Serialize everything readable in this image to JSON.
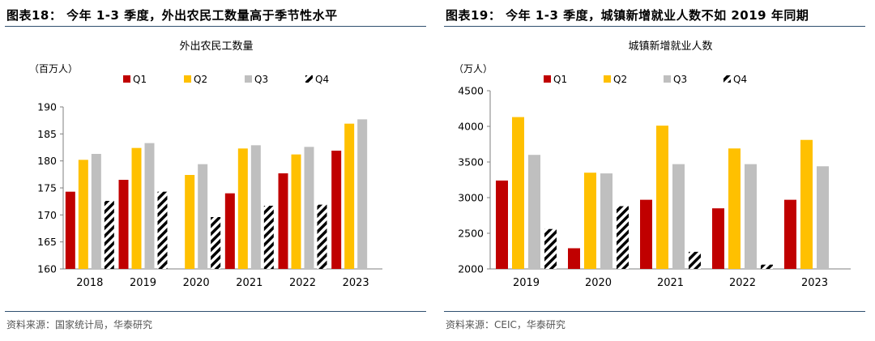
{
  "left": {
    "figure_title": "图表18： 今年 1-3 季度，外出农民工数量高于季节性水平",
    "source": "资料来源：国家统计局，华泰研究",
    "chart_data": {
      "type": "bar",
      "title": "外出农民工数量",
      "ylabel": "（百万人）",
      "xlabel": "",
      "ylim": [
        160,
        190
      ],
      "yticks": [
        160,
        165,
        170,
        175,
        180,
        185,
        190
      ],
      "categories": [
        "2018",
        "2019",
        "2020",
        "2021",
        "2022",
        "2023"
      ],
      "series": [
        {
          "name": "Q1",
          "values": [
            174.3,
            176.5,
            null,
            174.0,
            177.7,
            181.9
          ]
        },
        {
          "name": "Q2",
          "values": [
            180.2,
            182.4,
            177.4,
            182.3,
            181.2,
            186.9
          ]
        },
        {
          "name": "Q3",
          "values": [
            181.3,
            183.3,
            179.4,
            182.9,
            182.6,
            187.7
          ]
        },
        {
          "name": "Q4",
          "values": [
            172.6,
            174.3,
            169.6,
            171.7,
            171.9,
            null
          ]
        }
      ]
    }
  },
  "right": {
    "figure_title": "图表19： 今年 1-3 季度，城镇新增就业人数不如 2019 年同期",
    "source": "资料来源：CEIC，华泰研究",
    "chart_data": {
      "type": "bar",
      "title": "城镇新增就业人数",
      "ylabel": "（万人）",
      "xlabel": "",
      "ylim": [
        2000,
        4500
      ],
      "yticks": [
        2000,
        2500,
        3000,
        3500,
        4000,
        4500
      ],
      "categories": [
        "2019",
        "2020",
        "2021",
        "2022",
        "2023"
      ],
      "series": [
        {
          "name": "Q1",
          "values": [
            3240,
            2290,
            2970,
            2850,
            2970
          ]
        },
        {
          "name": "Q2",
          "values": [
            4130,
            3350,
            4010,
            3690,
            3810
          ]
        },
        {
          "name": "Q3",
          "values": [
            3600,
            3340,
            3470,
            3470,
            3440
          ]
        },
        {
          "name": "Q4",
          "values": [
            2560,
            2880,
            2240,
            2060,
            null
          ]
        }
      ]
    }
  },
  "colors": {
    "Q1": "#c00000",
    "Q2": "#ffc000",
    "Q3": "#bfbfbf",
    "Q4_stripe": "#000000",
    "rule": "#2f4f6f",
    "axis": "#7f7f7f"
  }
}
